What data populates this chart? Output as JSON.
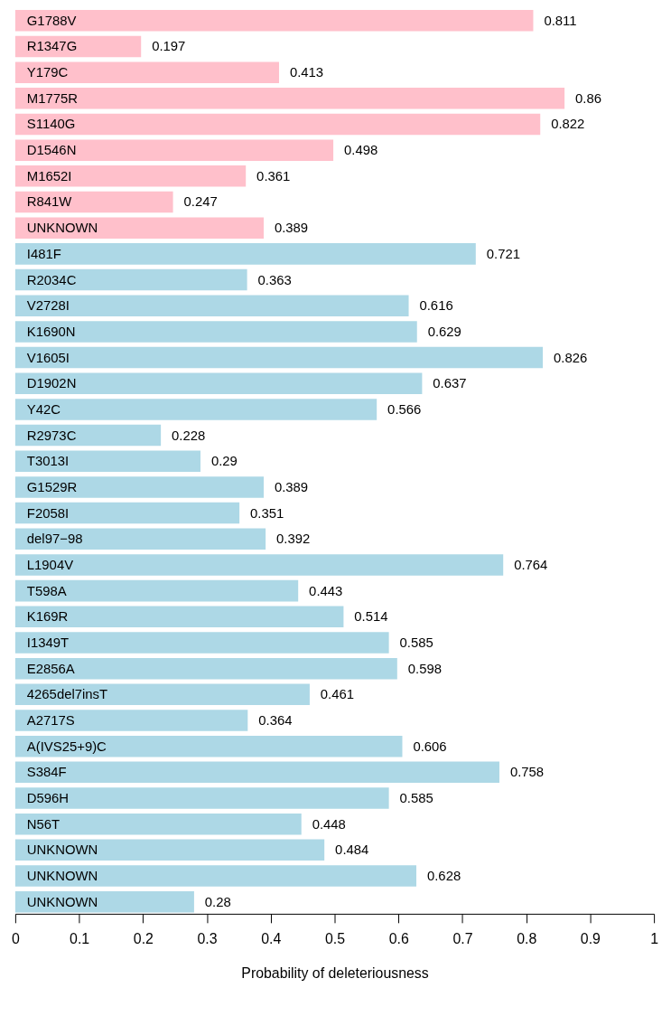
{
  "chart_data": {
    "type": "bar",
    "orientation": "horizontal",
    "xlabel": "Probability of deleteriousness",
    "categories": [
      "G1788V",
      "R1347G",
      "Y179C",
      "M1775R",
      "S1140G",
      "D1546N",
      "M1652I",
      "R841W",
      "UNKNOWN",
      "I481F",
      "R2034C",
      "V2728I",
      "K1690N",
      "V1605I",
      "D1902N",
      "Y42C",
      "R2973C",
      "T3013I",
      "G1529R",
      "F2058I",
      "del97−98",
      "L1904V",
      "T598A",
      "K169R",
      "I1349T",
      "E2856A",
      "4265del7insT",
      "A2717S",
      "A(IVS25+9)C",
      "S384F",
      "D596H",
      "N56T",
      "UNKNOWN",
      "UNKNOWN",
      "UNKNOWN"
    ],
    "values": [
      0.811,
      0.197,
      0.413,
      0.86,
      0.822,
      0.498,
      0.361,
      0.247,
      0.389,
      0.721,
      0.363,
      0.616,
      0.629,
      0.826,
      0.637,
      0.566,
      0.228,
      0.29,
      0.389,
      0.351,
      0.392,
      0.764,
      0.443,
      0.514,
      0.585,
      0.598,
      0.461,
      0.364,
      0.606,
      0.758,
      0.585,
      0.448,
      0.484,
      0.628,
      0.28
    ],
    "colors": [
      "#ffc0cb",
      "#ffc0cb",
      "#ffc0cb",
      "#ffc0cb",
      "#ffc0cb",
      "#ffc0cb",
      "#ffc0cb",
      "#ffc0cb",
      "#ffc0cb",
      "#add8e6",
      "#add8e6",
      "#add8e6",
      "#add8e6",
      "#add8e6",
      "#add8e6",
      "#add8e6",
      "#add8e6",
      "#add8e6",
      "#add8e6",
      "#add8e6",
      "#add8e6",
      "#add8e6",
      "#add8e6",
      "#add8e6",
      "#add8e6",
      "#add8e6",
      "#add8e6",
      "#add8e6",
      "#add8e6",
      "#add8e6",
      "#add8e6",
      "#add8e6",
      "#add8e6",
      "#add8e6",
      "#add8e6"
    ],
    "xlim": [
      0,
      1
    ],
    "xticks": [
      0,
      0.1,
      0.2,
      0.3,
      0.4,
      0.5,
      0.6,
      0.7,
      0.8,
      0.9,
      1
    ],
    "data_labels": true,
    "grid": false
  }
}
